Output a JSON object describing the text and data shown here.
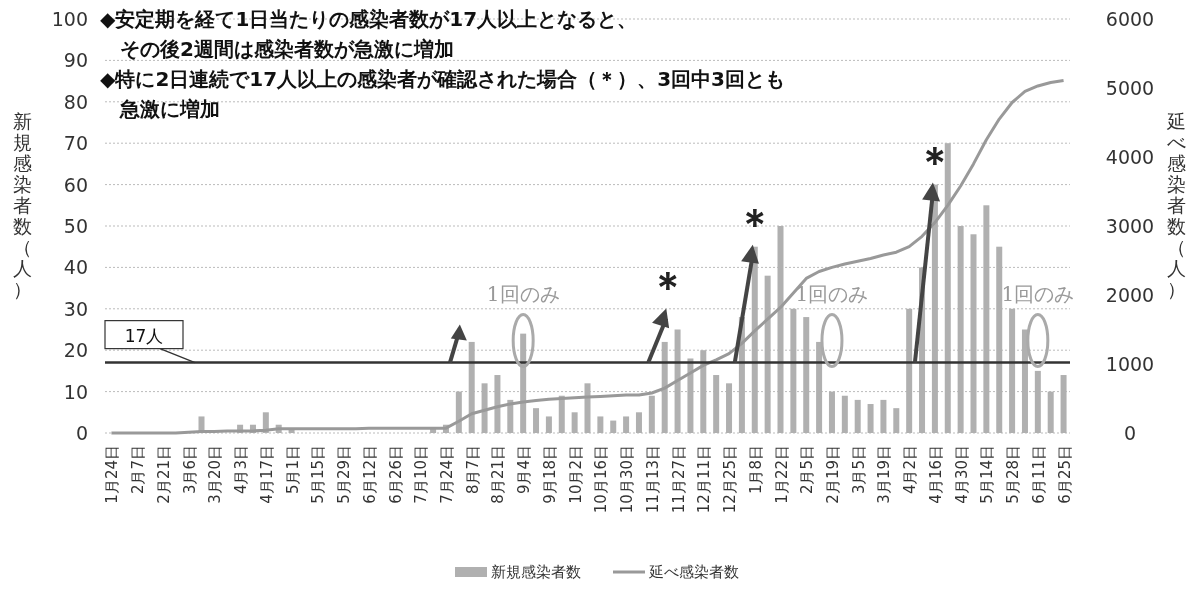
{
  "chart_data": {
    "type": "bar",
    "title": "◆安定期を経て1日当たりの感染者数が17人以上となると、その後2週間は感染者数が急激に増加",
    "subtitle": "◆特に2日連続で17人以上の感染者が確認された場合（＊）、3回中3回とも急激に増加",
    "ylabel": "新規感染者数（人）",
    "y2label": "延べ感染者数（人）",
    "categories": [
      "1月24日",
      null,
      "2月7日",
      null,
      "2月21日",
      null,
      "3月6日",
      null,
      "3月20日",
      null,
      "4月3日",
      null,
      "4月17日",
      null,
      "5月1日",
      null,
      "5月15日",
      null,
      "5月29日",
      null,
      "6月12日",
      null,
      "6月26日",
      null,
      "7月10日",
      null,
      "7月24日",
      null,
      "8月7日",
      null,
      "8月21日",
      null,
      "9月4日",
      null,
      "9月18日",
      null,
      "10月2日",
      null,
      "10月16日",
      null,
      "10月30日",
      null,
      "11月13日",
      null,
      "11月27日",
      null,
      "12月11日",
      null,
      "12月25日",
      null,
      "1月8日",
      null,
      "1月22日",
      null,
      "2月5日",
      null,
      "2月19日",
      null,
      "3月5日",
      null,
      "3月19日",
      null,
      "4月2日",
      null,
      "4月16日",
      null,
      "4月30日",
      null,
      "5月14日",
      null,
      "5月28日",
      null,
      "6月11日",
      null,
      "6月25日"
    ],
    "series": [
      {
        "name": "新規感染者数",
        "color": "#b0b0b0",
        "values": [
          0,
          0,
          0,
          0,
          0,
          0,
          0,
          4,
          null,
          null,
          2,
          2,
          5,
          2,
          1,
          0,
          0,
          0,
          0,
          0,
          0,
          0,
          0,
          0,
          0,
          1,
          2,
          10,
          22,
          12,
          14,
          8,
          24,
          6,
          4,
          9,
          5,
          12,
          4,
          3,
          4,
          5,
          9,
          22,
          25,
          18,
          20,
          14,
          12,
          28,
          45,
          38,
          50,
          30,
          28,
          22,
          10,
          9,
          8,
          7,
          8,
          6,
          30,
          40,
          60,
          70,
          50,
          48,
          55,
          45,
          30,
          25,
          15,
          10,
          14
        ]
      },
      {
        "name": "延べ感染者数",
        "type": "line",
        "axis": "y2",
        "color": "#999999",
        "values": [
          0,
          0,
          0,
          0,
          0,
          0,
          10,
          20,
          20,
          30,
          30,
          30,
          40,
          60,
          60,
          60,
          60,
          60,
          60,
          60,
          70,
          70,
          70,
          70,
          70,
          70,
          70,
          170,
          280,
          330,
          380,
          420,
          450,
          470,
          490,
          500,
          510,
          520,
          530,
          540,
          550,
          550,
          580,
          650,
          760,
          870,
          980,
          1060,
          1150,
          1300,
          1480,
          1650,
          1820,
          2030,
          2240,
          2340,
          2400,
          2450,
          2490,
          2530,
          2580,
          2620,
          2700,
          2850,
          3050,
          3300,
          3580,
          3900,
          4250,
          4550,
          4790,
          4950,
          5030,
          5080,
          5110
        ]
      }
    ],
    "ylim": [
      0,
      100
    ],
    "yticks": [
      0,
      10,
      20,
      30,
      40,
      50,
      60,
      70,
      80,
      90,
      100
    ],
    "y2lim": [
      0,
      6000
    ],
    "y2ticks": [
      0,
      1000,
      2000,
      3000,
      4000,
      5000,
      6000
    ],
    "grid": "y",
    "legend": "bottom",
    "ref_lines": [
      {
        "axis": "y",
        "value": 17,
        "label": "17人",
        "color": "#333333"
      }
    ],
    "annotations": [
      "＊",
      {
        "text": "＊",
        "x": "1月8日",
        "y": 45
      },
      {
        "text": "＊",
        "x": "4月16日",
        "y": 60
      },
      "1回のみ",
      "1回のみ",
      "1回のみ"
    ]
  }
}
